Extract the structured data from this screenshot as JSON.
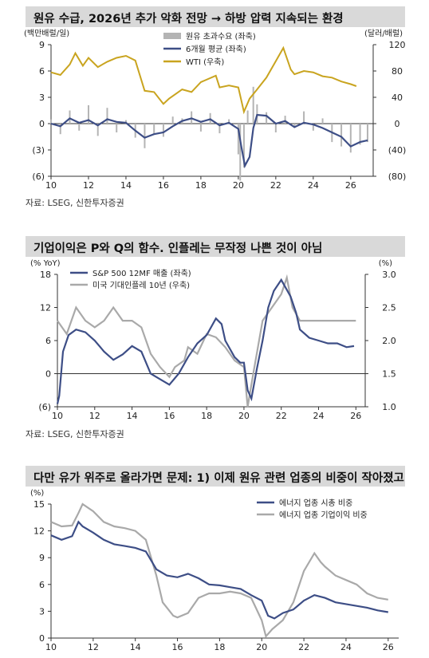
{
  "charts": [
    {
      "title": "원유 수급, 2026년 추가 악화 전망 → 하방 압력 지속되는 환경",
      "source": "자료: LSEG, 신한투자증권",
      "chart_data": {
        "type": "bar+line",
        "left_axis_label": "(백만배럴/일)",
        "right_axis_label": "(달러/배럴)",
        "left_ticks": [
          "9",
          "6",
          "3",
          "0",
          "(3)",
          "(6)"
        ],
        "left_tick_values": [
          9,
          6,
          3,
          0,
          -3,
          -6
        ],
        "right_ticks": [
          "120",
          "80",
          "40",
          "0",
          "(40)",
          "(80)"
        ],
        "right_tick_values": [
          120,
          80,
          40,
          0,
          -40,
          -80
        ],
        "x_ticks": [
          "10",
          "12",
          "14",
          "16",
          "18",
          "20",
          "22",
          "24",
          "26"
        ],
        "x_tick_values": [
          2010,
          2012,
          2014,
          2016,
          2018,
          2020,
          2022,
          2024,
          2026
        ],
        "xlim": [
          2010,
          2027.2
        ],
        "ylim_left": [
          -6,
          9
        ],
        "ylim_right": [
          -80,
          120
        ],
        "legend": [
          "원유 초과수요 (좌축)",
          "6개월 평균 (좌축)",
          "WTI (우축)"
        ],
        "colors": {
          "bars": "#b4b4b4",
          "avg": "#3d4e86",
          "wti": "#c9a41f"
        },
        "excess_demand": {
          "x": [
            2010,
            2010.5,
            2011,
            2011.5,
            2012,
            2012.5,
            2013,
            2013.5,
            2014,
            2014.5,
            2015,
            2015.5,
            2016,
            2016.5,
            2017,
            2017.5,
            2018,
            2018.5,
            2019,
            2019.5,
            2020,
            2020.1,
            2020.3,
            2020.5,
            2020.8,
            2021,
            2021.5,
            2022,
            2022.5,
            2023,
            2023.5,
            2024,
            2024.5,
            2025,
            2025.5,
            2026,
            2026.5,
            2026.9
          ],
          "y": [
            0.5,
            -1.2,
            1.5,
            -0.8,
            2.1,
            -1.4,
            1.8,
            -1,
            0.4,
            -1.6,
            -2.8,
            -1.2,
            -1.5,
            0.8,
            0.6,
            1.4,
            -0.9,
            1.2,
            -1.1,
            0.5,
            -3.5,
            -6.5,
            -5,
            1.5,
            4.2,
            2.2,
            1.3,
            -1,
            0.9,
            -0.5,
            1.4,
            -0.8,
            0.6,
            -2.1,
            -2.6,
            -3.3,
            -2.4,
            -2.1
          ]
        },
        "avg_6m": {
          "x": [
            2010,
            2010.5,
            2011,
            2011.5,
            2012,
            2012.5,
            2013,
            2013.5,
            2014,
            2014.5,
            2015,
            2015.5,
            2016,
            2016.5,
            2017,
            2017.5,
            2018,
            2018.5,
            2019,
            2019.5,
            2020,
            2020.15,
            2020.35,
            2020.6,
            2020.8,
            2021,
            2021.5,
            2022,
            2022.5,
            2023,
            2023.5,
            2024,
            2024.5,
            2025,
            2025.5,
            2026,
            2026.5,
            2026.9
          ],
          "y": [
            0,
            -0.3,
            0.6,
            0.1,
            0.4,
            -0.2,
            0.5,
            0.2,
            0.1,
            -0.8,
            -1.6,
            -1.2,
            -1,
            -0.3,
            0.3,
            0.6,
            0.2,
            0.5,
            -0.2,
            0.1,
            -0.6,
            -2.5,
            -4.8,
            -3.8,
            -0.5,
            1,
            0.9,
            0,
            0.3,
            -0.4,
            0.1,
            -0.1,
            -0.5,
            -1,
            -1.5,
            -2.6,
            -2.1,
            -1.9
          ]
        },
        "wti": {
          "x": [
            2010,
            2010.5,
            2011,
            2011.3,
            2011.7,
            2012,
            2012.5,
            2013,
            2013.5,
            2014,
            2014.5,
            2015,
            2015.5,
            2016,
            2016.3,
            2016.8,
            2017,
            2017.5,
            2018,
            2018.8,
            2019,
            2019.5,
            2020,
            2020.3,
            2020.6,
            2021,
            2021.5,
            2022,
            2022.4,
            2022.8,
            2023,
            2023.5,
            2024,
            2024.5,
            2025,
            2025.5,
            2026,
            2026.3
          ],
          "y": [
            78,
            74,
            90,
            107,
            88,
            100,
            86,
            94,
            100,
            103,
            96,
            50,
            48,
            30,
            38,
            48,
            52,
            48,
            63,
            73,
            55,
            58,
            55,
            18,
            38,
            52,
            70,
            95,
            115,
            82,
            75,
            80,
            78,
            72,
            70,
            64,
            60,
            57
          ]
        }
      }
    },
    {
      "title": "기업이익은 P와 Q의 함수. 인플레는 무작정 나쁜 것이 아님",
      "source": "자료: LSEG, 신한투자증권",
      "chart_data": {
        "type": "line",
        "left_axis_label": "(% YoY)",
        "right_axis_label": "(%)",
        "left_ticks": [
          "18",
          "12",
          "6",
          "0",
          "(6)"
        ],
        "left_tick_values": [
          18,
          12,
          6,
          0,
          -6
        ],
        "right_ticks": [
          "3.0",
          "2.5",
          "2.0",
          "1.5",
          "1.0"
        ],
        "right_tick_values": [
          3,
          2.5,
          2,
          1.5,
          1
        ],
        "x_ticks": [
          "10",
          "12",
          "14",
          "16",
          "18",
          "20",
          "22",
          "24",
          "26"
        ],
        "x_tick_values": [
          2010,
          2012,
          2014,
          2016,
          2018,
          2020,
          2022,
          2024,
          2026
        ],
        "xlim": [
          2010,
          2026.5
        ],
        "ylim_left": [
          -6,
          18
        ],
        "ylim_right": [
          1,
          3
        ],
        "legend": [
          "S&P 500 12MF 매출 (좌축)",
          "미국 기대인플레 10년 (우축)"
        ],
        "colors": {
          "sales": "#3d4e86",
          "infl": "#a9a9a9"
        },
        "sales": {
          "x": [
            2010,
            2010.1,
            2010.3,
            2010.6,
            2011,
            2011.5,
            2012,
            2012.5,
            2013,
            2013.5,
            2014,
            2014.5,
            2015,
            2015.5,
            2016,
            2016.5,
            2017,
            2017.5,
            2018,
            2018.5,
            2018.8,
            2019,
            2019.5,
            2019.8,
            2020,
            2020.2,
            2020.4,
            2020.7,
            2021,
            2021.3,
            2021.6,
            2022,
            2022.5,
            2022.8,
            2023,
            2023.5,
            2024,
            2024.5,
            2025,
            2025.5,
            2025.9
          ],
          "y": [
            -5.5,
            -4,
            4,
            7,
            8,
            7.5,
            6,
            4,
            2.5,
            3.5,
            5,
            4,
            0,
            -1,
            -2,
            0,
            3,
            5.5,
            7,
            10,
            9,
            6,
            3,
            2,
            2,
            -3,
            -4.5,
            1,
            6,
            12,
            15,
            17,
            14,
            11,
            8,
            6.5,
            6,
            5.5,
            5.5,
            4.8,
            5
          ]
        },
        "inflation": {
          "x": [
            2010,
            2010.5,
            2011,
            2011.5,
            2012,
            2012.5,
            2013,
            2013.5,
            2014,
            2014.5,
            2015,
            2015.5,
            2016,
            2016.3,
            2016.8,
            2017,
            2017.5,
            2018,
            2018.5,
            2019,
            2019.5,
            2020,
            2020.2,
            2020.5,
            2021,
            2021.5,
            2022,
            2022.3,
            2022.6,
            2023,
            2023.5,
            2024,
            2024.5,
            2025,
            2025.5,
            2026,
            2026
          ],
          "y": [
            2.3,
            2.1,
            2.5,
            2.3,
            2.2,
            2.3,
            2.5,
            2.3,
            2.3,
            2.2,
            1.8,
            1.6,
            1.45,
            1.6,
            1.7,
            1.9,
            1.8,
            2.1,
            2.05,
            1.9,
            1.7,
            1.6,
            1.0,
            1.5,
            2.3,
            2.5,
            2.7,
            2.95,
            2.5,
            2.3,
            2.3,
            2.3,
            2.3,
            2.3,
            2.3,
            2.3,
            2.3
          ]
        }
      }
    },
    {
      "title": "다만 유가 위주로 올라가면 문제: 1) 이제 원유 관련 업종의 비중이 작아졌고",
      "source": "",
      "chart_data": {
        "type": "line",
        "left_axis_label": "(%)",
        "left_ticks": [
          "15",
          "12",
          "9",
          "6",
          "3",
          "0"
        ],
        "left_tick_values": [
          15,
          12,
          9,
          6,
          3,
          0
        ],
        "x_ticks": [
          "10",
          "12",
          "14",
          "16",
          "18",
          "20",
          "22",
          "24",
          "26"
        ],
        "x_tick_values": [
          2010,
          2012,
          2014,
          2016,
          2018,
          2020,
          2022,
          2024,
          2026
        ],
        "xlim": [
          2010,
          2026.5
        ],
        "ylim_left": [
          0,
          15
        ],
        "legend": [
          "에너지 업종 시총 비중",
          "에너지 업종 기업이익 비중"
        ],
        "colors": {
          "mcap": "#3d4e86",
          "earn": "#a9a9a9"
        },
        "mcap": {
          "x": [
            2010,
            2010.5,
            2011,
            2011.3,
            2011.5,
            2012,
            2012.5,
            2013,
            2013.5,
            2014,
            2014.5,
            2015,
            2015.5,
            2016,
            2016.5,
            2017,
            2017.5,
            2018,
            2018.5,
            2019,
            2019.5,
            2020,
            2020.3,
            2020.6,
            2021,
            2021.5,
            2022,
            2022.5,
            2023,
            2023.5,
            2024,
            2024.5,
            2025,
            2025.5,
            2026
          ],
          "y": [
            11.5,
            11,
            11.4,
            13,
            12.5,
            11.8,
            11,
            10.5,
            10.3,
            10.1,
            9.7,
            7.7,
            7,
            6.8,
            7.2,
            6.7,
            6,
            5.9,
            5.7,
            5.5,
            4.8,
            4.2,
            2.5,
            2.2,
            2.8,
            3.2,
            4.2,
            4.8,
            4.5,
            4,
            3.8,
            3.6,
            3.4,
            3.1,
            2.9
          ]
        },
        "earnings": {
          "x": [
            2010,
            2010.5,
            2011,
            2011.3,
            2011.5,
            2012,
            2012.5,
            2013,
            2013.5,
            2014,
            2014.5,
            2015,
            2015.3,
            2015.8,
            2016,
            2016.5,
            2017,
            2017.5,
            2018,
            2018.5,
            2019,
            2019.5,
            2020,
            2020.2,
            2020.5,
            2021,
            2021.5,
            2022,
            2022.5,
            2022.8,
            2023,
            2023.5,
            2024,
            2024.5,
            2025,
            2025.5,
            2026
          ],
          "y": [
            13,
            12.5,
            12.6,
            14,
            15,
            14.2,
            13,
            12.5,
            12.3,
            12,
            11,
            7,
            4,
            2.5,
            2.3,
            2.8,
            4.5,
            5,
            5,
            5.2,
            5,
            4.5,
            2,
            0.2,
            1,
            2,
            4,
            7.5,
            9.5,
            8.5,
            8,
            7,
            6.5,
            6,
            5,
            4.5,
            4.3
          ]
        }
      }
    }
  ]
}
